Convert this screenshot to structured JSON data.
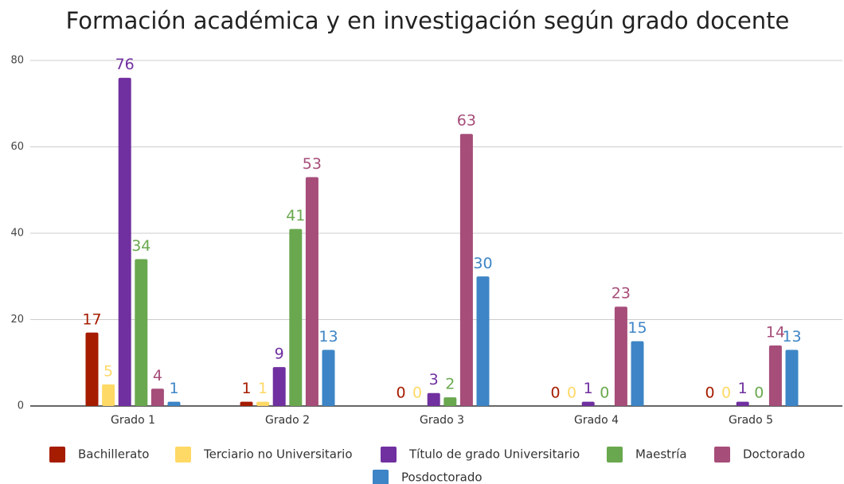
{
  "chart_data": {
    "type": "bar",
    "title": "Formación académica y en investigación según grado docente",
    "categories": [
      "Grado 1",
      "Grado 2",
      "Grado 3",
      "Grado 4",
      "Grado 5"
    ],
    "series": [
      {
        "name": "Bachillerato",
        "color": "#a61c00",
        "values": [
          17,
          1,
          0,
          0,
          0
        ]
      },
      {
        "name": "Terciario no Universitario",
        "color": "#ffd966",
        "values": [
          5,
          1,
          0,
          0,
          0
        ]
      },
      {
        "name": "Título de grado Universitario",
        "color": "#7030a0",
        "values": [
          76,
          9,
          3,
          1,
          1
        ]
      },
      {
        "name": "Maestría",
        "color": "#6aa84f",
        "values": [
          34,
          41,
          2,
          0,
          0
        ]
      },
      {
        "name": "Doctorado",
        "color": "#a64d79",
        "values": [
          4,
          53,
          63,
          23,
          14
        ]
      },
      {
        "name": "Posdoctorado",
        "color": "#3d85c6",
        "values": [
          1,
          13,
          30,
          15,
          13
        ]
      }
    ],
    "ylim": [
      0,
      80
    ],
    "yticks": [
      0,
      20,
      40,
      60,
      80
    ],
    "grid": true,
    "legend": "bottom"
  }
}
